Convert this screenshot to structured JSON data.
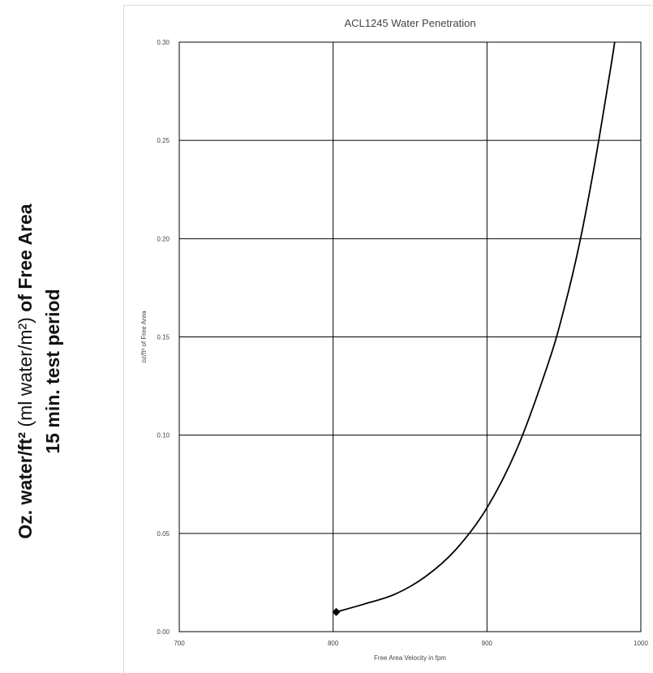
{
  "outer_ylabel": {
    "bold_part": "Oz. water/ft²",
    "normal_part": " (ml water/m²) ",
    "bold_part2": "of Free Area",
    "line2": "15 min. test period"
  },
  "chart_data": {
    "type": "line",
    "title": "ACL1245 Water Penetration",
    "xlabel": "Free Area Velocity in fpm",
    "ylabel": "oz/ft² of Free Area",
    "xlim": [
      700,
      1000
    ],
    "ylim": [
      0,
      0.3
    ],
    "xticks": [
      "700",
      "800",
      "900",
      "1000"
    ],
    "yticks": [
      "0.00",
      "0.05",
      "0.10",
      "0.15",
      "0.20",
      "0.25",
      "0.30"
    ],
    "grid": true,
    "series": [
      {
        "x": [
          802,
          820,
          840,
          860,
          880,
          900,
          920,
          940,
          950,
          960,
          970,
          980,
          983
        ],
        "y": [
          0.01,
          0.014,
          0.019,
          0.028,
          0.042,
          0.063,
          0.094,
          0.137,
          0.164,
          0.197,
          0.238,
          0.285,
          0.3
        ],
        "marker_start": true
      }
    ]
  }
}
